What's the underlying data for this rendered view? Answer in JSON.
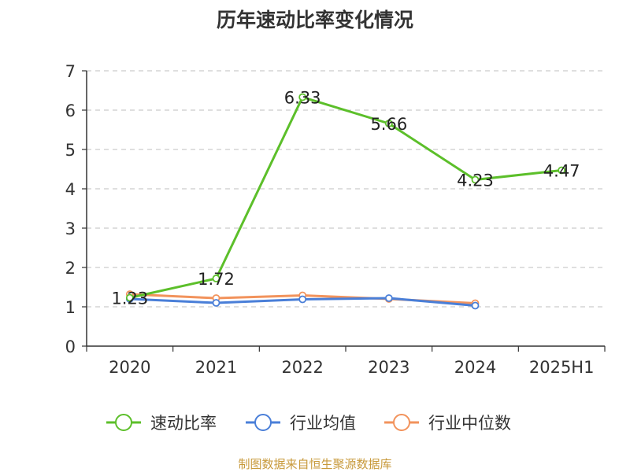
{
  "chart_data": {
    "type": "line",
    "title": "历年速动比率变化情况",
    "categories": [
      "2020",
      "2021",
      "2022",
      "2023",
      "2024",
      "2025H1"
    ],
    "ylim": [
      0,
      7
    ],
    "yticks": [
      0,
      1,
      2,
      3,
      4,
      5,
      6,
      7
    ],
    "grid": true,
    "legend_placement": "bottom",
    "series": [
      {
        "name": "速动比率",
        "color": "#5cbf2a",
        "values": [
          1.23,
          1.72,
          6.33,
          5.66,
          4.23,
          4.47
        ],
        "labels": [
          "1.23",
          "1.72",
          "6.33",
          "5.66",
          "4.23",
          "4.47"
        ]
      },
      {
        "name": "行业均值",
        "color": "#4a7fd8",
        "values": [
          1.2,
          1.1,
          1.19,
          1.22,
          1.03,
          null
        ]
      },
      {
        "name": "行业中位数",
        "color": "#f2935c",
        "values": [
          1.32,
          1.22,
          1.29,
          1.2,
          1.09,
          null
        ]
      }
    ],
    "source": "制图数据来自恒生聚源数据库"
  }
}
